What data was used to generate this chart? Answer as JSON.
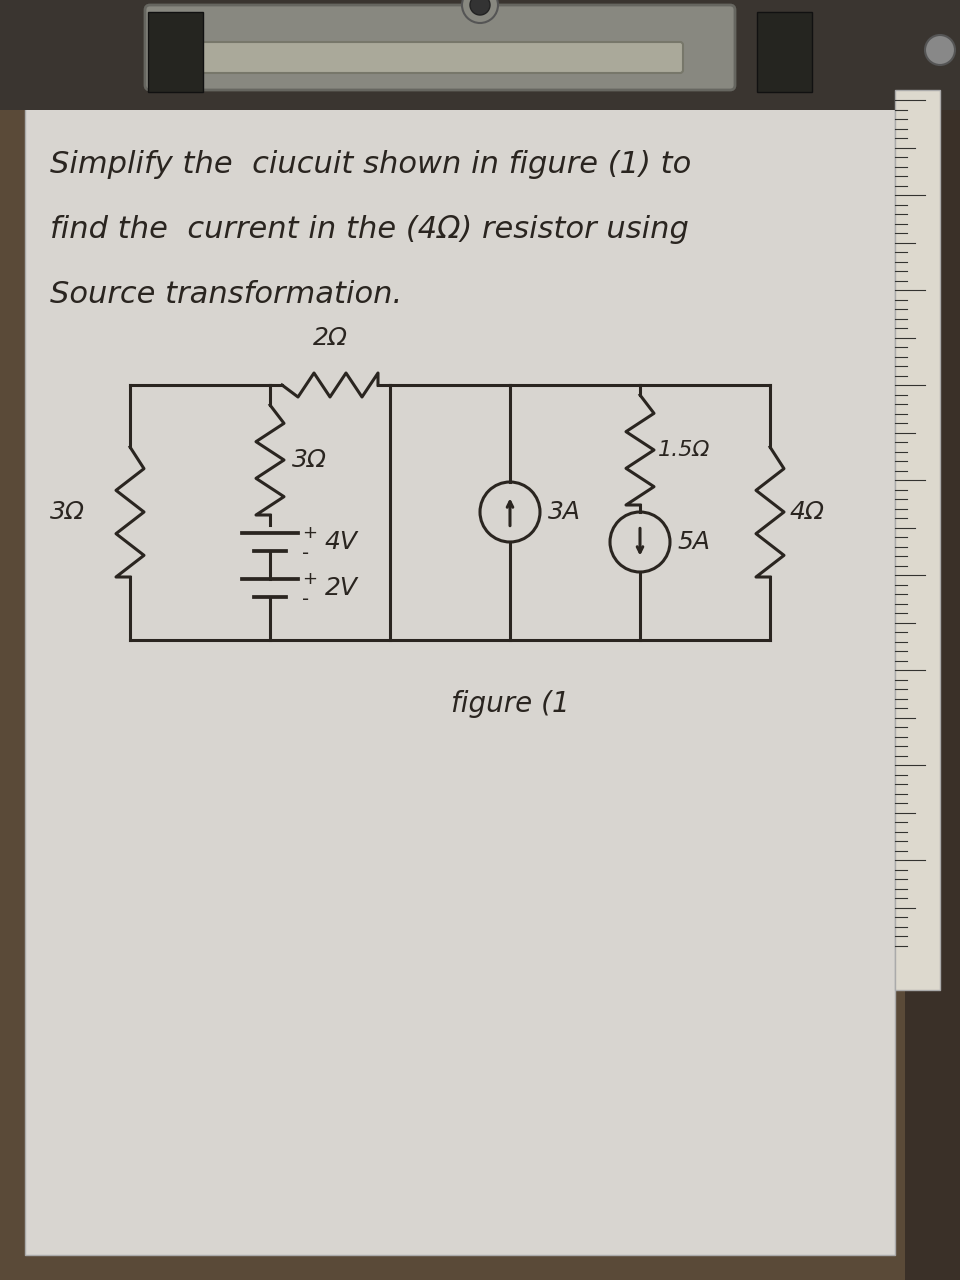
{
  "bg_color": "#5a4a38",
  "paper_color": "#d8d5d0",
  "paper_color2": "#ccc9c4",
  "text_color": "#2a2520",
  "ruler_color": "#e0ddd5",
  "clip_color": "#404040",
  "components": {
    "R3_left": "3Ω",
    "R3_middle": "3Ω",
    "R2_top": "2Ω",
    "V4": "4V",
    "V2": "2V",
    "I3": "3A",
    "R15": "1.5Ω",
    "I5": "5A",
    "R4": "4Ω"
  },
  "title_lines": [
    "Simplify the  ciucuit shown in figure (1) to",
    "find the  current in the (4Ω) resistor using",
    "Source transformation."
  ],
  "figure_label": "figure (1"
}
